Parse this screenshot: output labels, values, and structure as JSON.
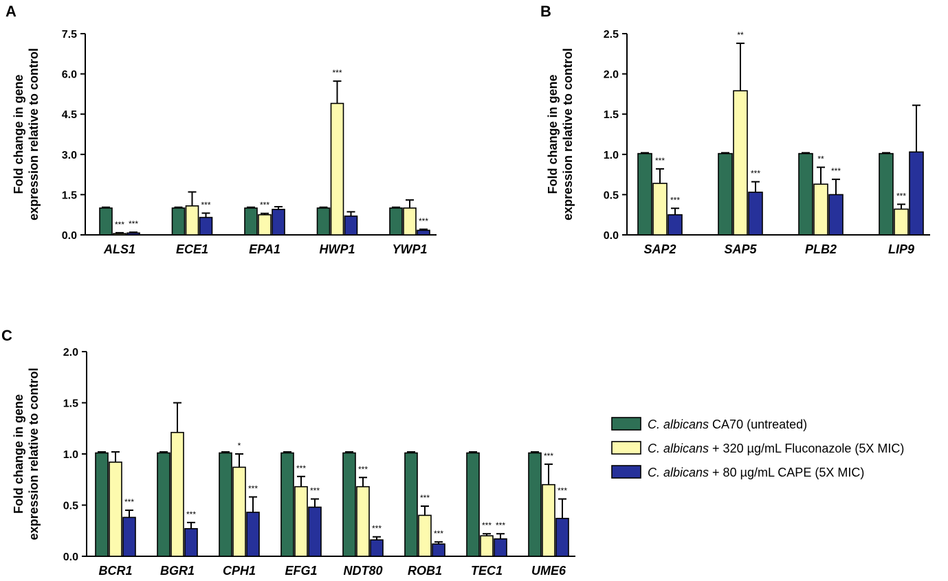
{
  "colors": {
    "untreated": "#2e7055",
    "fluconazole": "#fdfaae",
    "cape": "#26319a",
    "outline": "#000000"
  },
  "legend": {
    "position": "right",
    "entries": [
      {
        "key": "untreated",
        "italic": "C. albicans",
        "rest": " CA70 (untreated)"
      },
      {
        "key": "fluconazole",
        "italic": "C. albicans",
        "rest": " + 320 µg/mL Fluconazole (5X MIC)"
      },
      {
        "key": "cape",
        "italic": "C. albicans",
        "rest": " + 80 µg/mL CAPE (5X MIC)"
      }
    ]
  },
  "chart_data": [
    {
      "panel": "A",
      "type": "bar",
      "ylabel": [
        "Fold change in gene",
        "expression relative to control"
      ],
      "ylim": [
        0,
        7.5
      ],
      "yticks": [
        "0.0",
        "1.5",
        "3.0",
        "4.5",
        "6.0",
        "7.5"
      ],
      "categories": [
        "ALS1",
        "ECE1",
        "EPA1",
        "HWP1",
        "YWP1"
      ],
      "series": [
        {
          "name": "untreated",
          "values": [
            1.0,
            1.0,
            1.0,
            1.0,
            1.0
          ],
          "errors": [
            0.03,
            0.03,
            0.03,
            0.03,
            0.03
          ],
          "sig": [
            "",
            "",
            "",
            "",
            ""
          ]
        },
        {
          "name": "fluconazole",
          "values": [
            0.05,
            1.08,
            0.75,
            4.9,
            1.0
          ],
          "errors": [
            0.03,
            0.52,
            0.05,
            0.83,
            0.3
          ],
          "sig": [
            "***",
            "",
            "***",
            "***",
            ""
          ]
        },
        {
          "name": "cape",
          "values": [
            0.07,
            0.65,
            0.95,
            0.7,
            0.17
          ],
          "errors": [
            0.03,
            0.16,
            0.1,
            0.16,
            0.04
          ],
          "sig": [
            "***",
            "***",
            "",
            "",
            "***"
          ]
        }
      ]
    },
    {
      "panel": "B",
      "type": "bar",
      "ylabel": [
        "Fold change in gene",
        "expression relative to control"
      ],
      "ylim": [
        0,
        2.5
      ],
      "yticks": [
        "0.0",
        "0.5",
        "1.0",
        "1.5",
        "2.0",
        "2.5"
      ],
      "categories": [
        "SAP2",
        "SAP5",
        "PLB2",
        "LIP9"
      ],
      "series": [
        {
          "name": "untreated",
          "values": [
            1.01,
            1.01,
            1.01,
            1.01
          ],
          "errors": [
            0.01,
            0.01,
            0.01,
            0.01
          ],
          "sig": [
            "",
            "",
            "",
            ""
          ]
        },
        {
          "name": "fluconazole",
          "values": [
            0.64,
            1.79,
            0.63,
            0.32
          ],
          "errors": [
            0.18,
            0.59,
            0.21,
            0.06
          ],
          "sig": [
            "***",
            "**",
            "**",
            "***"
          ]
        },
        {
          "name": "cape",
          "values": [
            0.25,
            0.53,
            0.5,
            1.03
          ],
          "errors": [
            0.08,
            0.13,
            0.19,
            0.58
          ],
          "sig": [
            "***",
            "***",
            "***",
            ""
          ]
        }
      ]
    },
    {
      "panel": "C",
      "type": "bar",
      "ylabel": [
        "Fold change in gene",
        "expression relative to control"
      ],
      "ylim": [
        0,
        2.0
      ],
      "yticks": [
        "0.0",
        "0.5",
        "1.0",
        "1.5",
        "2.0"
      ],
      "categories": [
        "BCR1",
        "BGR1",
        "CPH1",
        "EFG1",
        "NDT80",
        "ROB1",
        "TEC1",
        "UME6"
      ],
      "series": [
        {
          "name": "untreated",
          "values": [
            1.01,
            1.01,
            1.01,
            1.01,
            1.01,
            1.01,
            1.01,
            1.01
          ],
          "errors": [
            0.01,
            0.01,
            0.01,
            0.01,
            0.01,
            0.01,
            0.01,
            0.01
          ],
          "sig": [
            "",
            "",
            "",
            "",
            "",
            "",
            "",
            ""
          ]
        },
        {
          "name": "fluconazole",
          "values": [
            0.92,
            1.21,
            0.87,
            0.68,
            0.68,
            0.4,
            0.2,
            0.7
          ],
          "errors": [
            0.1,
            0.29,
            0.13,
            0.1,
            0.09,
            0.09,
            0.02,
            0.2
          ],
          "sig": [
            "",
            "",
            "*",
            "***",
            "***",
            "***",
            "***",
            "***"
          ]
        },
        {
          "name": "cape",
          "values": [
            0.38,
            0.27,
            0.43,
            0.48,
            0.16,
            0.12,
            0.17,
            0.37
          ],
          "errors": [
            0.07,
            0.06,
            0.15,
            0.08,
            0.03,
            0.02,
            0.05,
            0.19
          ],
          "sig": [
            "***",
            "***",
            "***",
            "***",
            "***",
            "***",
            "***",
            "***"
          ]
        }
      ]
    }
  ]
}
